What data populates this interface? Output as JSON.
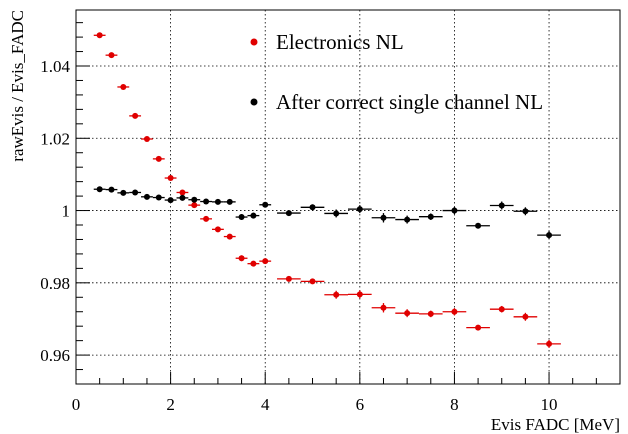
{
  "chart_data": {
    "type": "scatter",
    "title": "",
    "xlabel": "Evis  FADC [MeV]",
    "ylabel": "rawEvis / Evis_FADC",
    "xlim": [
      0,
      11.5
    ],
    "ylim": [
      0.952,
      1.0555
    ],
    "x_ticks": [
      0,
      2,
      4,
      6,
      8,
      10
    ],
    "y_ticks": [
      0.96,
      0.98,
      1.0,
      1.02,
      1.04
    ],
    "y_tick_labels": [
      "0.96",
      "0.98",
      "1",
      "1.02",
      "1.04"
    ],
    "grid": true,
    "legend_position": "top-center",
    "colors": {
      "electronics": "#e00000",
      "after": "#000000"
    },
    "series": [
      {
        "name": "Electronics NL",
        "color": "#e00000",
        "x": [
          0.5,
          0.75,
          1.0,
          1.25,
          1.5,
          1.75,
          2.0,
          2.25,
          2.5,
          2.75,
          3.0,
          3.25,
          3.5,
          3.75,
          4.0,
          4.5,
          5.0,
          5.5,
          6.0,
          6.5,
          7.0,
          7.5,
          8.0,
          8.5,
          9.0,
          9.5,
          10.0
        ],
        "y": [
          1.0485,
          1.043,
          1.0342,
          1.0262,
          1.0198,
          1.0143,
          1.009,
          1.005,
          1.0015,
          0.9977,
          0.9948,
          0.9928,
          0.9868,
          0.9853,
          0.986,
          0.9811,
          0.9804,
          0.9767,
          0.9768,
          0.9731,
          0.9716,
          0.9714,
          0.972,
          0.9676,
          0.9727,
          0.9706,
          0.9631
        ],
        "xerr": [
          0.125,
          0.125,
          0.125,
          0.125,
          0.125,
          0.125,
          0.125,
          0.125,
          0.125,
          0.125,
          0.125,
          0.125,
          0.125,
          0.125,
          0.125,
          0.25,
          0.25,
          0.25,
          0.25,
          0.25,
          0.25,
          0.25,
          0.25,
          0.25,
          0.25,
          0.25,
          0.25
        ],
        "yerr": [
          0.0004,
          0.0004,
          0.0004,
          0.0004,
          0.0004,
          0.0004,
          0.0004,
          0.0004,
          0.0004,
          0.0004,
          0.0004,
          0.0004,
          0.0008,
          0.0005,
          0.0005,
          0.0006,
          0.0007,
          0.0011,
          0.0011,
          0.0013,
          0.0011,
          0.0009,
          0.001,
          0.0007,
          0.0009,
          0.0011,
          0.0011
        ]
      },
      {
        "name": "After correct single channel NL",
        "color": "#000000",
        "x": [
          0.5,
          0.75,
          1.0,
          1.25,
          1.5,
          1.75,
          2.0,
          2.25,
          2.5,
          2.75,
          3.0,
          3.25,
          3.5,
          3.75,
          4.0,
          4.5,
          5.0,
          5.5,
          6.0,
          6.5,
          7.0,
          7.5,
          8.0,
          8.5,
          9.0,
          9.5,
          10.0
        ],
        "y": [
          1.0059,
          1.0058,
          1.0049,
          1.005,
          1.0038,
          1.0036,
          1.0029,
          1.0035,
          1.003,
          1.0025,
          1.0024,
          1.0024,
          0.9982,
          0.9986,
          1.0016,
          0.9993,
          1.0009,
          0.9992,
          1.0004,
          0.998,
          0.9975,
          0.9983,
          1.0,
          0.9958,
          1.0014,
          0.9998,
          0.9932
        ],
        "xerr": [
          0.125,
          0.125,
          0.125,
          0.125,
          0.125,
          0.125,
          0.125,
          0.125,
          0.125,
          0.125,
          0.125,
          0.125,
          0.125,
          0.125,
          0.125,
          0.25,
          0.25,
          0.25,
          0.25,
          0.25,
          0.25,
          0.25,
          0.25,
          0.25,
          0.25,
          0.25,
          0.25
        ],
        "yerr": [
          0.0004,
          0.0004,
          0.0004,
          0.0004,
          0.0004,
          0.0004,
          0.0004,
          0.0004,
          0.0004,
          0.0004,
          0.0004,
          0.0004,
          0.0008,
          0.0008,
          0.0006,
          0.0006,
          0.0008,
          0.0011,
          0.0011,
          0.0013,
          0.0011,
          0.0009,
          0.001,
          0.0007,
          0.0011,
          0.0011,
          0.0011
        ]
      }
    ]
  }
}
